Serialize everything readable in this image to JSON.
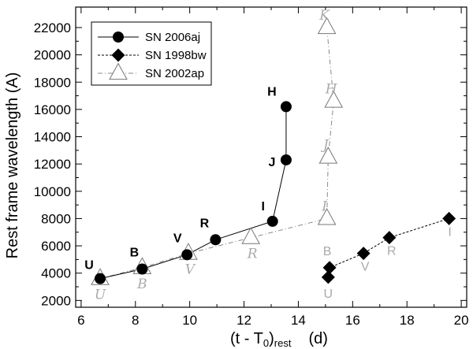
{
  "chart_data": {
    "type": "line",
    "xlabel": "(t - T0)rest      (d)",
    "ylabel": "Rest frame wavelength      (A)",
    "xlim": [
      5.8,
      20.2
    ],
    "ylim": [
      1500,
      23500
    ],
    "xticks": [
      6,
      8,
      10,
      12,
      14,
      16,
      18,
      20
    ],
    "yticks": [
      2000,
      4000,
      6000,
      8000,
      10000,
      12000,
      14000,
      16000,
      18000,
      20000,
      22000
    ],
    "colors": {
      "black": "#000000",
      "grey": "#aaaaaa",
      "sn2002ap_line": "#888888"
    },
    "series": [
      {
        "name": "SN 2006aj",
        "marker": "circle",
        "line": "solid",
        "x": [
          6.7,
          8.25,
          9.9,
          10.95,
          13.05,
          13.55,
          13.55
        ],
        "y": [
          3600,
          4300,
          5350,
          6450,
          7800,
          12300,
          16200
        ],
        "labels": [
          "U",
          "B",
          "V",
          "R",
          "I",
          "J",
          "H"
        ]
      },
      {
        "name": "SN 1998bw",
        "marker": "diamond",
        "line": "dashed",
        "x": [
          15.1,
          15.15,
          16.4,
          17.35,
          19.55
        ],
        "y": [
          3700,
          4400,
          5450,
          6600,
          8000
        ],
        "labels": [
          "U",
          "B",
          "V",
          "R",
          "I"
        ]
      },
      {
        "name": "SN 2002ap",
        "marker": "triangle",
        "line": "dashdot",
        "x": [
          6.7,
          8.25,
          9.95,
          12.25,
          15.05,
          15.1,
          15.3,
          15.05
        ],
        "y": [
          3600,
          4400,
          5450,
          6600,
          8000,
          12500,
          16600,
          22000
        ],
        "labels": [
          "U",
          "B",
          "V",
          "R",
          "I",
          "J",
          "H",
          "K"
        ]
      }
    ]
  }
}
